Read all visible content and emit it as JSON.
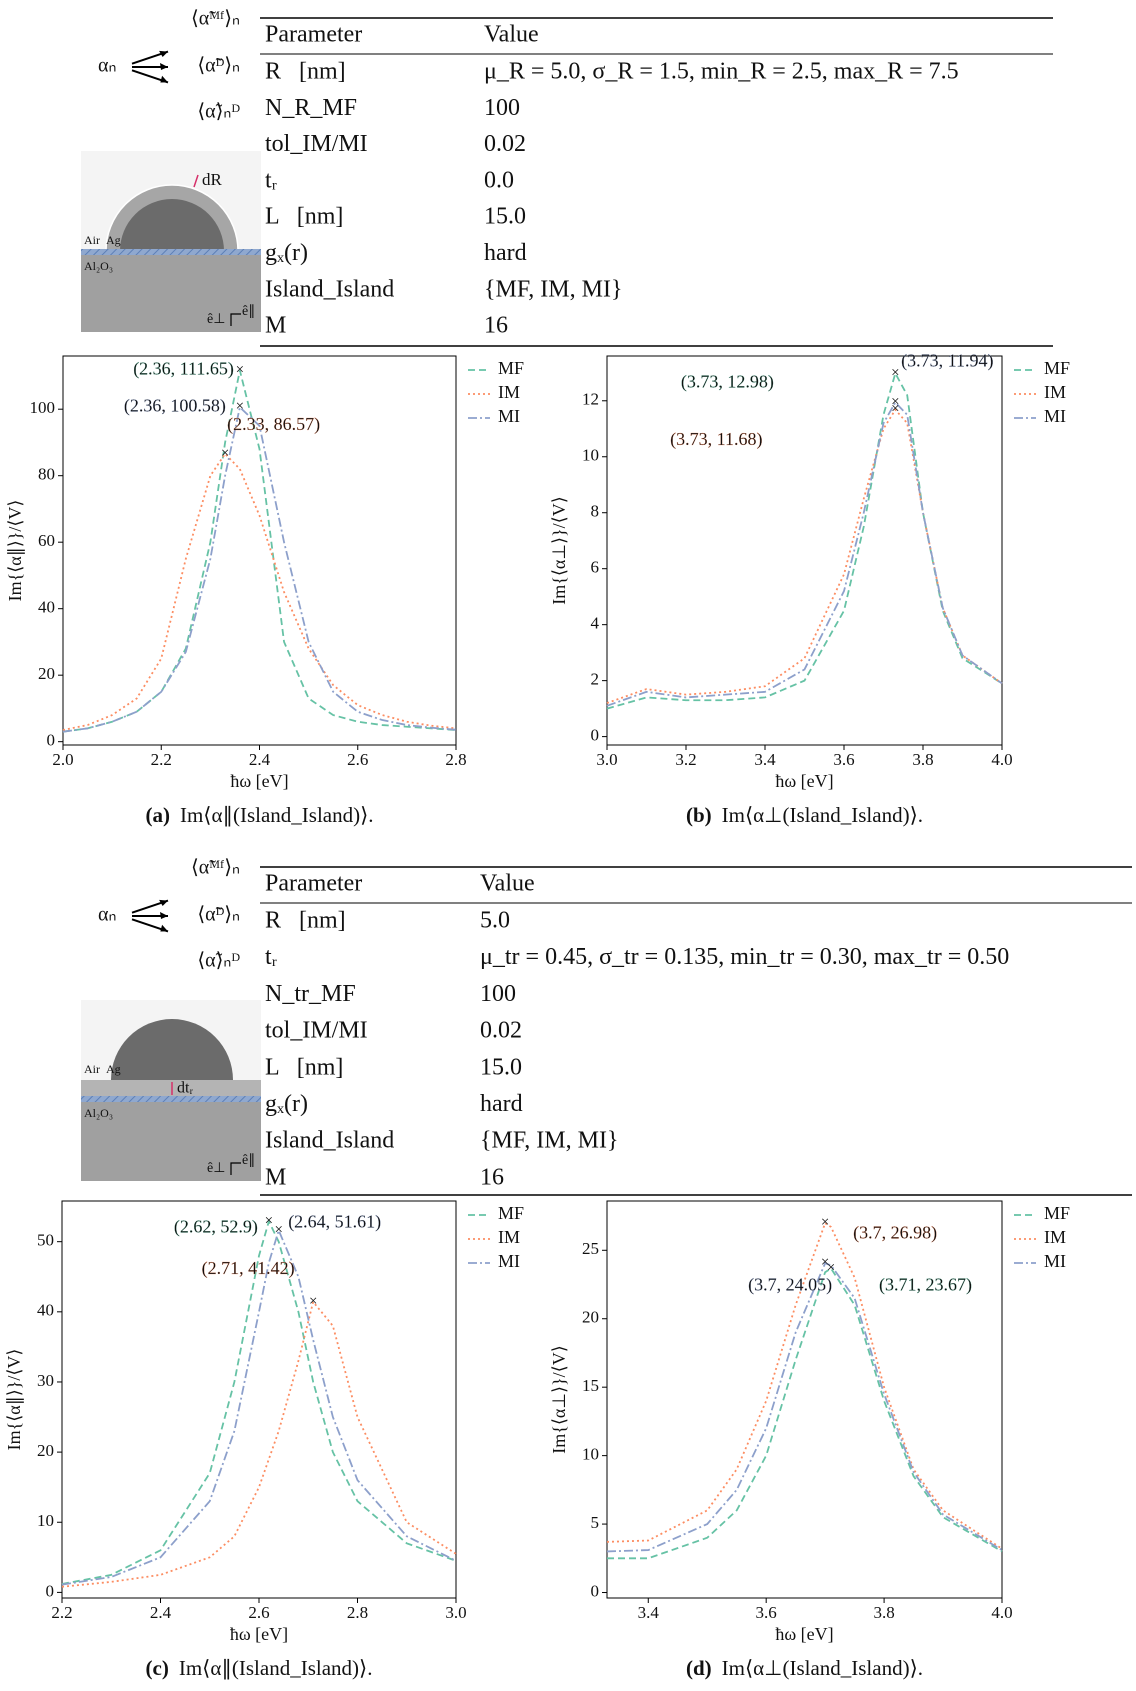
{
  "panels": [
    {
      "diagram": {
        "alpha": "αₙ",
        "outputs": [
          "⟨α̃ᴹᶠ⟩ₙ",
          "⟨α̃ᴰ⟩ₙ",
          "⟨α̃⟩ₙᴰ"
        ],
        "materials": [
          "Air",
          "Ag",
          "Al₂O₃"
        ],
        "shell": "dR",
        "axes": [
          "ê⊥",
          "ê∥"
        ]
      },
      "table": {
        "header": [
          "Parameter",
          "Value"
        ],
        "rows": [
          [
            "R   [nm]",
            "μ_R = 5.0, σ_R = 1.5, min_R = 2.5, max_R = 7.5"
          ],
          [
            "N_R_MF",
            "100"
          ],
          [
            "tol_IM/MI",
            "0.02"
          ],
          [
            "tᵣ",
            "0.0"
          ],
          [
            "L   [nm]",
            "15.0"
          ],
          [
            "gₓ(r)",
            "hard"
          ],
          [
            "Island_Island",
            "{MF, IM, MI}"
          ],
          [
            "M",
            "16"
          ]
        ]
      }
    },
    {
      "diagram": {
        "alpha": "αₙ",
        "outputs": [
          "⟨α̃ᴹᶠ⟩ₙ",
          "⟨α̃ᴰ⟩ₙ",
          "⟨α̃⟩ₙᴰ"
        ],
        "materials": [
          "Air",
          "Ag",
          "Al₂O₃"
        ],
        "shell": "dtᵣ",
        "axes": [
          "ê⊥",
          "ê∥"
        ]
      },
      "table": {
        "header": [
          "Parameter",
          "Value"
        ],
        "rows": [
          [
            "R   [nm]",
            "5.0"
          ],
          [
            "tᵣ",
            "μ_tr = 0.45, σ_tr = 0.135, min_tr = 0.30, max_tr = 0.50"
          ],
          [
            "N_tr_MF",
            "100"
          ],
          [
            "tol_IM/MI",
            "0.02"
          ],
          [
            "L   [nm]",
            "15.0"
          ],
          [
            "gₓ(r)",
            "hard"
          ],
          [
            "Island_Island",
            "{MF, IM, MI}"
          ],
          [
            "M",
            "16"
          ]
        ]
      }
    }
  ],
  "chart_data": [
    {
      "type": "line",
      "caption_tag": "(a)",
      "caption": "Im⟨α∥(Island_Island)⟩.",
      "xlabel": "ħω [eV]",
      "ylabel": "Im{⟨α∥⟩}/⟨V⟩",
      "legend": "outside right",
      "x": [
        2.0,
        2.05,
        2.1,
        2.15,
        2.2,
        2.25,
        2.3,
        2.33,
        2.36,
        2.4,
        2.45,
        2.5,
        2.55,
        2.6,
        2.65,
        2.7,
        2.75,
        2.8
      ],
      "xlim": [
        2.0,
        2.8
      ],
      "xticks": [
        {
          "value": 2.0,
          "label": "2.0"
        },
        2.2,
        2.4,
        2.6,
        2.8
      ],
      "ylim": [
        -1,
        116
      ],
      "yticks": [
        0,
        20,
        40,
        60,
        80,
        100
      ],
      "series": [
        {
          "name": "MF",
          "color": "#66c2a5",
          "linestyle": "dashed",
          "values": [
            3,
            4,
            6,
            9,
            15,
            28,
            60,
            90,
            111.65,
            88,
            30,
            13,
            8,
            6,
            5,
            4.5,
            4,
            3.5
          ]
        },
        {
          "name": "IM",
          "color": "#fc8d62",
          "linestyle": "dotted",
          "values": [
            3.5,
            5,
            8,
            13,
            25,
            55,
            80,
            86.57,
            82,
            68,
            45,
            28,
            17,
            11,
            8,
            6,
            4.8,
            4
          ]
        },
        {
          "name": "MI",
          "color": "#8da0cb",
          "linestyle": "dashdot",
          "values": [
            3,
            4,
            6,
            9,
            15,
            27,
            55,
            80,
            100.58,
            95,
            60,
            30,
            15,
            9,
            6.5,
            5,
            4.2,
            3.6
          ]
        }
      ],
      "annotations": [
        {
          "label": "(2.36, 111.65)",
          "x": 2.36,
          "y": 111.65,
          "color": "#66c2a5"
        },
        {
          "label": "(2.36, 100.58)",
          "x": 2.36,
          "y": 100.58,
          "color": "#8da0cb"
        },
        {
          "label": "(2.33, 86.57)",
          "x": 2.33,
          "y": 86.57,
          "color": "#fc8d62"
        }
      ]
    },
    {
      "type": "line",
      "caption_tag": "(b)",
      "caption": "Im⟨α⊥(Island_Island)⟩.",
      "xlabel": "ħω [eV]",
      "ylabel": "Im{⟨α⊥⟩}/⟨V⟩",
      "legend": "outside right",
      "x": [
        3.0,
        3.1,
        3.2,
        3.3,
        3.4,
        3.5,
        3.6,
        3.65,
        3.7,
        3.73,
        3.76,
        3.8,
        3.85,
        3.9,
        4.0
      ],
      "xlim": [
        3.0,
        4.0
      ],
      "xticks": [
        {
          "value": 3.0,
          "label": "3.0"
        },
        3.2,
        3.4,
        3.6,
        3.8,
        {
          "value": 4.0,
          "label": "4.0"
        }
      ],
      "ylim": [
        -0.3,
        13.6
      ],
      "yticks": [
        0,
        2,
        4,
        6,
        8,
        10,
        12
      ],
      "series": [
        {
          "name": "MF",
          "color": "#66c2a5",
          "linestyle": "dashed",
          "values": [
            1.0,
            1.4,
            1.3,
            1.3,
            1.4,
            2.0,
            4.5,
            7.5,
            11.5,
            12.98,
            12.2,
            8.0,
            4.5,
            2.8,
            1.9
          ]
        },
        {
          "name": "IM",
          "color": "#fc8d62",
          "linestyle": "dotted",
          "values": [
            1.2,
            1.7,
            1.5,
            1.6,
            1.8,
            2.8,
            5.8,
            8.5,
            11.0,
            11.68,
            11.2,
            8.0,
            4.6,
            2.9,
            1.9
          ]
        },
        {
          "name": "MI",
          "color": "#8da0cb",
          "linestyle": "dashdot",
          "values": [
            1.1,
            1.6,
            1.4,
            1.5,
            1.6,
            2.4,
            5.2,
            8.0,
            11.2,
            11.94,
            11.5,
            8.0,
            4.6,
            2.9,
            1.9
          ]
        }
      ],
      "annotations": [
        {
          "label": "(3.73, 12.98)",
          "x": 3.73,
          "y": 12.98,
          "color": "#66c2a5"
        },
        {
          "label": "(3.73, 11.68)",
          "x": 3.73,
          "y": 11.68,
          "color": "#fc8d62"
        },
        {
          "label": "(3.73, 11.94)",
          "x": 3.73,
          "y": 11.94,
          "color": "#8da0cb"
        }
      ]
    },
    {
      "type": "line",
      "caption_tag": "(c)",
      "caption": "Im⟨α∥(Island_Island)⟩.",
      "xlabel": "ħω [eV]",
      "ylabel": "Im{⟨α∥⟩}/⟨V⟩",
      "legend": "outside right",
      "x": [
        2.2,
        2.3,
        2.4,
        2.5,
        2.55,
        2.6,
        2.62,
        2.64,
        2.68,
        2.71,
        2.75,
        2.8,
        2.9,
        3.0
      ],
      "xlim": [
        2.2,
        3.0
      ],
      "xticks": [
        2.2,
        2.4,
        2.6,
        2.8,
        {
          "value": 3.0,
          "label": "3.0"
        }
      ],
      "ylim": [
        -0.8,
        55.8
      ],
      "yticks": [
        0,
        10,
        20,
        30,
        40,
        50
      ],
      "series": [
        {
          "name": "MF",
          "color": "#66c2a5",
          "linestyle": "dashed",
          "values": [
            1.2,
            2.5,
            6,
            17,
            30,
            48,
            52.9,
            50,
            40,
            30,
            20,
            13,
            7,
            4.5
          ]
        },
        {
          "name": "IM",
          "color": "#fc8d62",
          "linestyle": "dotted",
          "values": [
            0.8,
            1.5,
            2.5,
            5,
            8,
            15,
            19,
            23,
            33,
            41.42,
            38,
            25,
            10,
            5.5
          ]
        },
        {
          "name": "MI",
          "color": "#8da0cb",
          "linestyle": "dashdot",
          "values": [
            1.1,
            2.2,
            5,
            13,
            23,
            40,
            47,
            51.61,
            45,
            36,
            25,
            16,
            8,
            4.5
          ]
        }
      ],
      "annotations": [
        {
          "label": "(2.62, 52.9)",
          "x": 2.62,
          "y": 52.9,
          "color": "#66c2a5"
        },
        {
          "label": "(2.64, 51.61)",
          "x": 2.64,
          "y": 51.61,
          "color": "#8da0cb"
        },
        {
          "label": "(2.71, 41.42)",
          "x": 2.71,
          "y": 41.42,
          "color": "#fc8d62"
        }
      ]
    },
    {
      "type": "line",
      "caption_tag": "(d)",
      "caption": "Im⟨α⊥(Island_Island)⟩.",
      "xlabel": "ħω [eV]",
      "ylabel": "Im{⟨α⊥⟩}/⟨V⟩",
      "legend": "outside right",
      "x": [
        3.33,
        3.4,
        3.5,
        3.55,
        3.6,
        3.65,
        3.7,
        3.71,
        3.75,
        3.8,
        3.85,
        3.9,
        4.0
      ],
      "xlim": [
        3.33,
        4.0
      ],
      "xticks": [
        3.4,
        3.6,
        3.8,
        {
          "value": 4.0,
          "label": "4.0"
        }
      ],
      "ylim": [
        -0.4,
        28.6
      ],
      "yticks": [
        0,
        5,
        10,
        15,
        20,
        25
      ],
      "series": [
        {
          "name": "MF",
          "color": "#66c2a5",
          "linestyle": "dashed",
          "values": [
            2.5,
            2.5,
            4,
            6,
            10,
            17,
            23.4,
            23.67,
            21,
            14,
            8.5,
            5.5,
            3
          ]
        },
        {
          "name": "IM",
          "color": "#fc8d62",
          "linestyle": "dotted",
          "values": [
            3.7,
            3.8,
            6,
            9,
            14,
            21,
            26.98,
            26.7,
            23,
            15,
            9,
            6,
            3.2
          ]
        },
        {
          "name": "MI",
          "color": "#8da0cb",
          "linestyle": "dashdot",
          "values": [
            3.0,
            3.1,
            5,
            7.5,
            12,
            19,
            24.05,
            23.9,
            21.5,
            14.5,
            8.8,
            5.7,
            3.1
          ]
        }
      ],
      "annotations": [
        {
          "label": "(3.71, 23.67)",
          "x": 3.71,
          "y": 23.67,
          "color": "#66c2a5"
        },
        {
          "label": "(3.7, 26.98)",
          "x": 3.7,
          "y": 26.98,
          "color": "#fc8d62"
        },
        {
          "label": "(3.7, 24.05)",
          "x": 3.7,
          "y": 24.05,
          "color": "#8da0cb"
        }
      ]
    }
  ]
}
